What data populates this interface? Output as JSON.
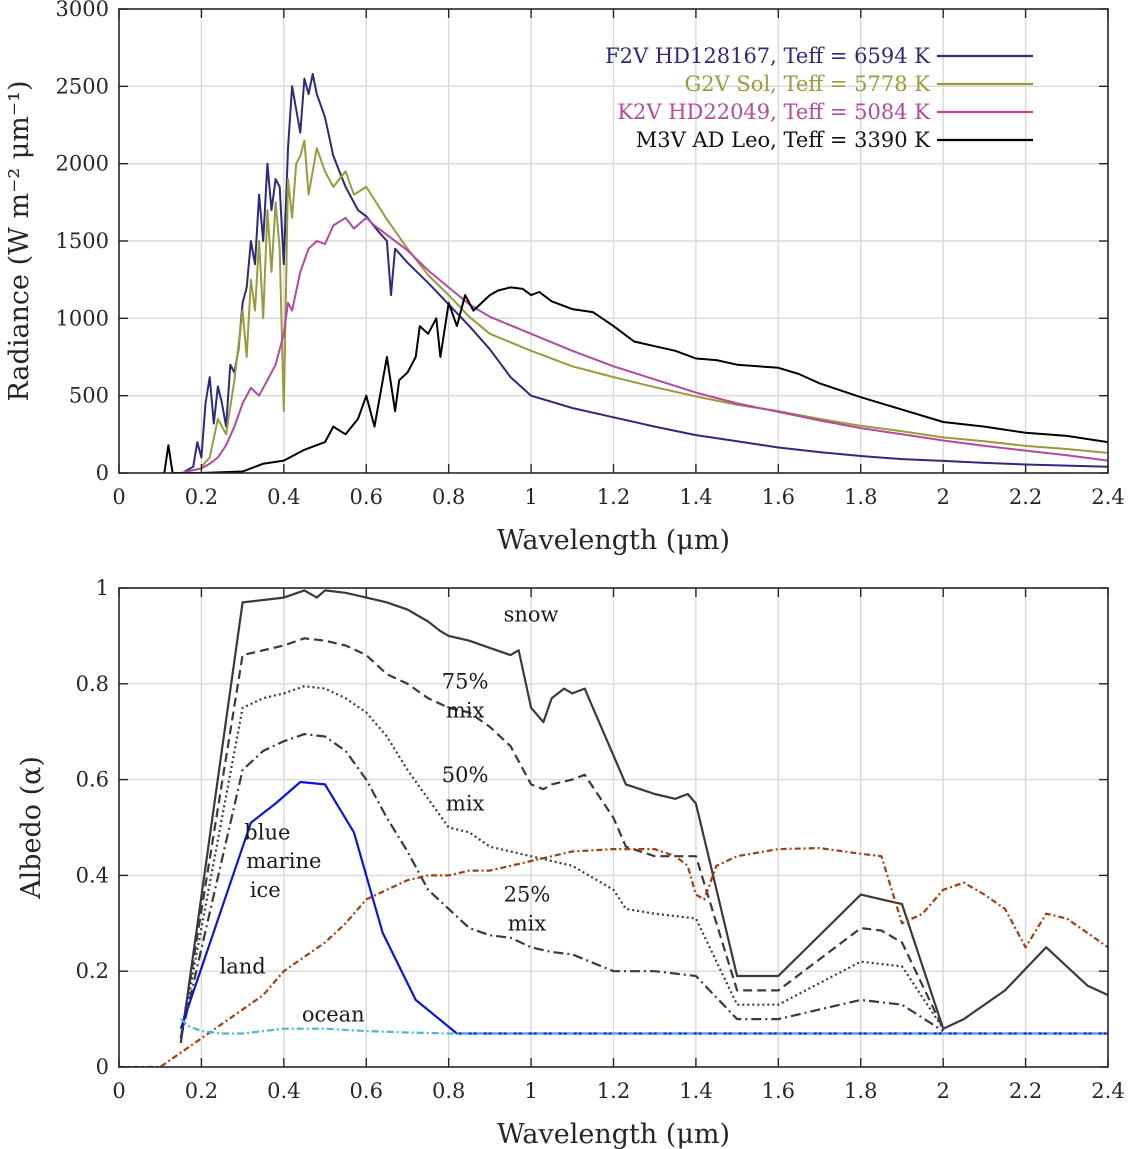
{
  "chart_data": [
    {
      "type": "line",
      "xlabel": "Wavelength (μm)",
      "ylabel": "Radiance (W m⁻² μm⁻¹)",
      "xlim": [
        0,
        2.4
      ],
      "ylim": [
        0,
        3000
      ],
      "xticks": [
        0,
        0.2,
        0.4,
        0.6,
        0.8,
        1,
        1.2,
        1.4,
        1.6,
        1.8,
        2,
        2.2,
        2.4
      ],
      "xtick_labels": [
        "0",
        "0.2",
        "0.4",
        "0.6",
        "0.8",
        "1",
        "1.2",
        "1.4",
        "1.6",
        "1.8",
        "2",
        "2.2",
        "2.4"
      ],
      "yticks": [
        0,
        500,
        1000,
        1500,
        2000,
        2500,
        3000
      ],
      "ytick_labels": [
        "0",
        "500",
        "1000",
        "1500",
        "2000",
        "2500",
        "3000"
      ],
      "grid": true,
      "legend_position": "top-right",
      "series": [
        {
          "name": "F2V HD128167, Teff = 6594 K",
          "color": "#2b2a7e",
          "x": [
            0.16,
            0.18,
            0.19,
            0.2,
            0.21,
            0.22,
            0.23,
            0.24,
            0.25,
            0.26,
            0.27,
            0.28,
            0.29,
            0.3,
            0.31,
            0.32,
            0.33,
            0.34,
            0.35,
            0.36,
            0.37,
            0.38,
            0.39,
            0.4,
            0.41,
            0.42,
            0.43,
            0.44,
            0.45,
            0.46,
            0.47,
            0.48,
            0.5,
            0.52,
            0.55,
            0.58,
            0.6,
            0.63,
            0.65,
            0.66,
            0.67,
            0.7,
            0.75,
            0.8,
            0.85,
            0.9,
            0.95,
            1.0,
            1.1,
            1.2,
            1.3,
            1.4,
            1.5,
            1.6,
            1.7,
            1.8,
            1.9,
            2.0,
            2.1,
            2.2,
            2.3,
            2.4
          ],
          "y": [
            10,
            40,
            200,
            100,
            450,
            620,
            320,
            560,
            450,
            300,
            700,
            650,
            800,
            1100,
            1200,
            1500,
            1350,
            1800,
            1500,
            2000,
            1700,
            1900,
            1850,
            1350,
            2100,
            2500,
            2350,
            2200,
            2550,
            2450,
            2580,
            2450,
            2300,
            2050,
            1850,
            1700,
            1660,
            1560,
            1500,
            1150,
            1450,
            1360,
            1230,
            1090,
            950,
            800,
            620,
            500,
            420,
            360,
            300,
            245,
            205,
            165,
            135,
            110,
            90,
            78,
            65,
            55,
            48,
            40
          ]
        },
        {
          "name": "G2V Sol, Teff = 5778 K",
          "color": "#9b9a3d",
          "x": [
            0.2,
            0.22,
            0.24,
            0.26,
            0.28,
            0.3,
            0.31,
            0.32,
            0.33,
            0.34,
            0.35,
            0.36,
            0.37,
            0.38,
            0.39,
            0.4,
            0.41,
            0.42,
            0.43,
            0.44,
            0.45,
            0.46,
            0.48,
            0.5,
            0.52,
            0.55,
            0.57,
            0.6,
            0.65,
            0.7,
            0.75,
            0.8,
            0.85,
            0.9,
            1.0,
            1.1,
            1.2,
            1.3,
            1.4,
            1.5,
            1.6,
            1.7,
            1.8,
            1.9,
            2.0,
            2.1,
            2.2,
            2.3,
            2.4
          ],
          "y": [
            40,
            100,
            350,
            250,
            600,
            1050,
            750,
            1250,
            1050,
            1500,
            1000,
            1700,
            1300,
            1750,
            1450,
            400,
            1900,
            1650,
            2000,
            2050,
            2150,
            1800,
            2100,
            1950,
            1850,
            1950,
            1800,
            1850,
            1640,
            1450,
            1280,
            1150,
            1010,
            900,
            790,
            690,
            620,
            555,
            495,
            440,
            400,
            350,
            305,
            270,
            230,
            205,
            175,
            155,
            130
          ]
        },
        {
          "name": "K2V HD22049, Teff = 5084 K",
          "color": "#b5499e",
          "x": [
            0.15,
            0.2,
            0.22,
            0.24,
            0.26,
            0.28,
            0.3,
            0.32,
            0.34,
            0.36,
            0.38,
            0.4,
            0.41,
            0.42,
            0.44,
            0.46,
            0.48,
            0.5,
            0.52,
            0.55,
            0.57,
            0.6,
            0.62,
            0.65,
            0.7,
            0.75,
            0.8,
            0.85,
            0.9,
            1.0,
            1.1,
            1.2,
            1.3,
            1.4,
            1.5,
            1.6,
            1.7,
            1.8,
            1.9,
            2.0,
            2.1,
            2.2,
            2.3,
            2.4
          ],
          "y": [
            0,
            30,
            60,
            100,
            180,
            300,
            450,
            550,
            500,
            600,
            700,
            900,
            1100,
            1050,
            1300,
            1450,
            1500,
            1480,
            1600,
            1650,
            1580,
            1650,
            1600,
            1540,
            1440,
            1310,
            1200,
            1090,
            1010,
            900,
            790,
            690,
            605,
            520,
            450,
            395,
            340,
            290,
            250,
            210,
            175,
            145,
            115,
            80
          ]
        },
        {
          "name": "M3V AD Leo, Teff = 3390 K",
          "color": "#000000",
          "x": [
            0.11,
            0.12,
            0.13,
            0.2,
            0.3,
            0.35,
            0.4,
            0.45,
            0.5,
            0.52,
            0.55,
            0.58,
            0.6,
            0.62,
            0.65,
            0.67,
            0.68,
            0.7,
            0.72,
            0.73,
            0.75,
            0.77,
            0.78,
            0.8,
            0.82,
            0.84,
            0.86,
            0.88,
            0.9,
            0.92,
            0.95,
            0.98,
            1.0,
            1.02,
            1.05,
            1.1,
            1.15,
            1.2,
            1.25,
            1.3,
            1.35,
            1.4,
            1.45,
            1.5,
            1.6,
            1.65,
            1.7,
            1.8,
            1.9,
            2.0,
            2.1,
            2.2,
            2.3,
            2.4
          ],
          "y": [
            0,
            180,
            0,
            0,
            10,
            60,
            80,
            150,
            200,
            300,
            250,
            350,
            500,
            300,
            750,
            400,
            600,
            650,
            750,
            950,
            900,
            1000,
            750,
            1100,
            950,
            1150,
            1050,
            1100,
            1150,
            1180,
            1200,
            1190,
            1150,
            1170,
            1110,
            1060,
            1040,
            950,
            850,
            820,
            790,
            740,
            730,
            700,
            680,
            640,
            580,
            490,
            410,
            330,
            300,
            260,
            240,
            200
          ]
        }
      ]
    },
    {
      "type": "line",
      "xlabel": "Wavelength (μm)",
      "ylabel": "Albedo (α)",
      "xlim": [
        0,
        2.4
      ],
      "ylim": [
        0,
        1
      ],
      "xticks": [
        0,
        0.2,
        0.4,
        0.6,
        0.8,
        1,
        1.2,
        1.4,
        1.6,
        1.8,
        2,
        2.2,
        2.4
      ],
      "xtick_labels": [
        "0",
        "0.2",
        "0.4",
        "0.6",
        "0.8",
        "1",
        "1.2",
        "1.4",
        "1.6",
        "1.8",
        "2",
        "2.2",
        "2.4"
      ],
      "yticks": [
        0,
        0.2,
        0.4,
        0.6,
        0.8,
        1
      ],
      "ytick_labels": [
        "0",
        "0.2",
        "0.4",
        "0.6",
        "0.8",
        "1"
      ],
      "grid": true,
      "series": [
        {
          "name": "snow",
          "color": "#3a3a3a",
          "dash": "solid",
          "x": [
            0.15,
            0.3,
            0.35,
            0.4,
            0.45,
            0.48,
            0.5,
            0.55,
            0.6,
            0.65,
            0.7,
            0.75,
            0.78,
            0.8,
            0.85,
            0.9,
            0.95,
            0.97,
            1.0,
            1.03,
            1.05,
            1.08,
            1.1,
            1.13,
            1.15,
            1.2,
            1.23,
            1.3,
            1.35,
            1.38,
            1.4,
            1.5,
            1.6,
            1.8,
            1.9,
            2.0,
            2.05,
            2.15,
            2.25,
            2.35,
            2.4
          ],
          "y": [
            0.05,
            0.97,
            0.975,
            0.98,
            0.995,
            0.98,
            0.995,
            0.99,
            0.98,
            0.97,
            0.955,
            0.93,
            0.91,
            0.9,
            0.89,
            0.875,
            0.86,
            0.87,
            0.75,
            0.72,
            0.77,
            0.79,
            0.78,
            0.79,
            0.75,
            0.65,
            0.59,
            0.57,
            0.56,
            0.57,
            0.55,
            0.19,
            0.19,
            0.36,
            0.34,
            0.08,
            0.1,
            0.16,
            0.25,
            0.17,
            0.15
          ]
        },
        {
          "name": "75% mix",
          "color": "#3a3a3a",
          "dash": "9,5",
          "x": [
            0.15,
            0.3,
            0.35,
            0.4,
            0.45,
            0.5,
            0.55,
            0.6,
            0.65,
            0.7,
            0.75,
            0.8,
            0.85,
            0.9,
            0.95,
            1.0,
            1.03,
            1.05,
            1.1,
            1.13,
            1.2,
            1.23,
            1.3,
            1.35,
            1.4,
            1.5,
            1.6,
            1.8,
            1.85,
            1.9,
            2.0
          ],
          "y": [
            0.06,
            0.86,
            0.87,
            0.88,
            0.895,
            0.89,
            0.88,
            0.86,
            0.82,
            0.8,
            0.77,
            0.75,
            0.74,
            0.71,
            0.67,
            0.59,
            0.58,
            0.59,
            0.6,
            0.61,
            0.52,
            0.46,
            0.44,
            0.44,
            0.44,
            0.16,
            0.16,
            0.29,
            0.285,
            0.26,
            0.08
          ]
        },
        {
          "name": "50% mix",
          "color": "#3a3a3a",
          "dash": "2,3",
          "x": [
            0.15,
            0.3,
            0.35,
            0.4,
            0.45,
            0.5,
            0.55,
            0.6,
            0.65,
            0.7,
            0.75,
            0.8,
            0.85,
            0.9,
            0.95,
            1.0,
            1.05,
            1.1,
            1.2,
            1.23,
            1.3,
            1.4,
            1.5,
            1.6,
            1.8,
            1.9,
            2.0
          ],
          "y": [
            0.06,
            0.75,
            0.77,
            0.78,
            0.795,
            0.79,
            0.77,
            0.74,
            0.69,
            0.62,
            0.56,
            0.5,
            0.49,
            0.46,
            0.45,
            0.44,
            0.43,
            0.42,
            0.37,
            0.33,
            0.32,
            0.31,
            0.13,
            0.13,
            0.22,
            0.21,
            0.08
          ]
        },
        {
          "name": "25% mix",
          "color": "#3a3a3a",
          "dash": "10,4,2,4",
          "x": [
            0.15,
            0.3,
            0.35,
            0.4,
            0.45,
            0.5,
            0.55,
            0.6,
            0.65,
            0.7,
            0.75,
            0.8,
            0.85,
            0.9,
            0.95,
            1.0,
            1.05,
            1.1,
            1.2,
            1.23,
            1.3,
            1.4,
            1.5,
            1.6,
            1.8,
            1.9,
            2.0
          ],
          "y": [
            0.06,
            0.62,
            0.66,
            0.68,
            0.695,
            0.69,
            0.66,
            0.6,
            0.52,
            0.45,
            0.37,
            0.33,
            0.29,
            0.275,
            0.27,
            0.25,
            0.24,
            0.235,
            0.2,
            0.2,
            0.2,
            0.19,
            0.1,
            0.1,
            0.14,
            0.13,
            0.075
          ]
        },
        {
          "name": "blue marine ice",
          "color": "#0a17d9",
          "dash": "solid",
          "x": [
            0.15,
            0.32,
            0.38,
            0.44,
            0.5,
            0.57,
            0.64,
            0.72,
            0.82,
            2.4
          ],
          "y": [
            0.08,
            0.51,
            0.55,
            0.595,
            0.59,
            0.49,
            0.28,
            0.14,
            0.07,
            0.07
          ]
        },
        {
          "name": "land",
          "color": "#a33d0a",
          "dash": "6,3,2,3",
          "x": [
            0,
            0.1,
            0.2,
            0.3,
            0.35,
            0.4,
            0.45,
            0.5,
            0.55,
            0.6,
            0.65,
            0.7,
            0.75,
            0.8,
            0.85,
            0.9,
            1.0,
            1.1,
            1.2,
            1.3,
            1.35,
            1.38,
            1.4,
            1.42,
            1.45,
            1.5,
            1.6,
            1.7,
            1.8,
            1.85,
            1.9,
            1.95,
            2.0,
            2.05,
            2.1,
            2.15,
            2.2,
            2.25,
            2.3,
            2.35,
            2.4
          ],
          "y": [
            0,
            0,
            0.06,
            0.12,
            0.15,
            0.2,
            0.23,
            0.26,
            0.3,
            0.35,
            0.37,
            0.39,
            0.4,
            0.4,
            0.41,
            0.41,
            0.43,
            0.45,
            0.455,
            0.455,
            0.44,
            0.42,
            0.36,
            0.35,
            0.42,
            0.44,
            0.455,
            0.457,
            0.445,
            0.44,
            0.3,
            0.32,
            0.37,
            0.385,
            0.36,
            0.33,
            0.25,
            0.32,
            0.31,
            0.28,
            0.25
          ]
        },
        {
          "name": "ocean",
          "color": "#4ab3e3",
          "dash": "7,3,2,3",
          "x": [
            0.15,
            0.17,
            0.2,
            0.25,
            0.3,
            0.35,
            0.4,
            0.45,
            0.5,
            0.6,
            0.7,
            0.8,
            1.0,
            1.5,
            2.0,
            2.4
          ],
          "y": [
            0.1,
            0.085,
            0.075,
            0.07,
            0.07,
            0.075,
            0.08,
            0.08,
            0.08,
            0.075,
            0.072,
            0.07,
            0.07,
            0.07,
            0.07,
            0.07
          ]
        }
      ],
      "annotations": [
        {
          "text": "snow",
          "x": 1.0,
          "y": 0.93
        },
        {
          "text": "75%",
          "x": 0.84,
          "y": 0.79
        },
        {
          "text": "mix",
          "x": 0.84,
          "y": 0.73
        },
        {
          "text": "50%",
          "x": 0.84,
          "y": 0.595
        },
        {
          "text": "mix",
          "x": 0.84,
          "y": 0.535
        },
        {
          "text": "blue",
          "x": 0.36,
          "y": 0.475
        },
        {
          "text": "marine",
          "x": 0.4,
          "y": 0.415
        },
        {
          "text": "ice",
          "x": 0.355,
          "y": 0.355
        },
        {
          "text": "25%",
          "x": 0.99,
          "y": 0.345
        },
        {
          "text": "mix",
          "x": 0.99,
          "y": 0.285
        },
        {
          "text": "land",
          "x": 0.3,
          "y": 0.195
        },
        {
          "text": "ocean",
          "x": 0.52,
          "y": 0.095
        }
      ]
    }
  ]
}
